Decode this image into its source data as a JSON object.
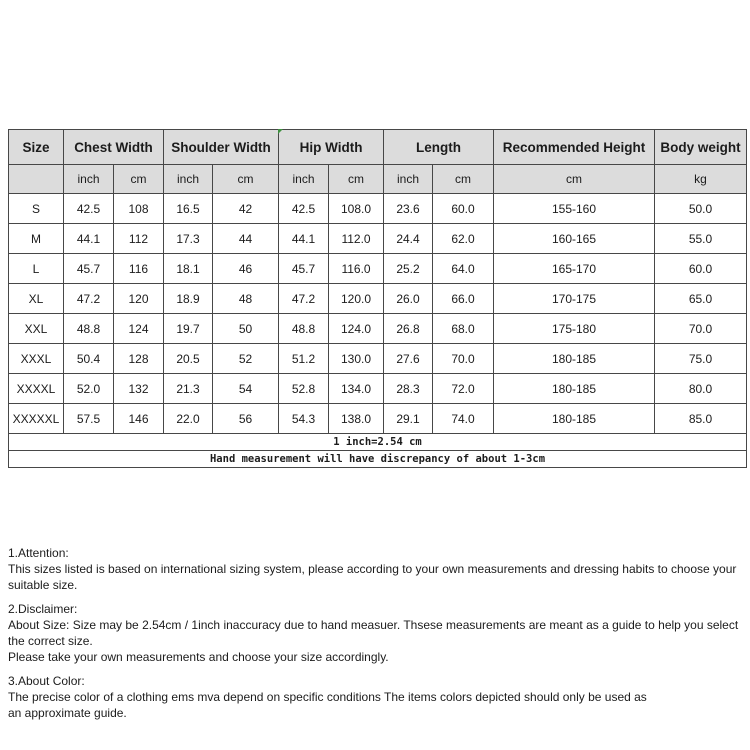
{
  "table": {
    "header": {
      "size_label": "Size",
      "groups": [
        {
          "label": "Chest Width"
        },
        {
          "label": "Shoulder Width"
        },
        {
          "label": "Hip Width"
        },
        {
          "label": "Length"
        },
        {
          "label": "Recommended Height"
        },
        {
          "label": "Body weight"
        }
      ],
      "units": [
        "",
        "inch",
        "cm",
        "inch",
        "cm",
        "inch",
        "cm",
        "inch",
        "cm",
        "cm",
        "kg"
      ]
    },
    "rows": [
      [
        "S",
        "42.5",
        "108",
        "16.5",
        "42",
        "42.5",
        "108.0",
        "23.6",
        "60.0",
        "155-160",
        "50.0"
      ],
      [
        "M",
        "44.1",
        "112",
        "17.3",
        "44",
        "44.1",
        "112.0",
        "24.4",
        "62.0",
        "160-165",
        "55.0"
      ],
      [
        "L",
        "45.7",
        "116",
        "18.1",
        "46",
        "45.7",
        "116.0",
        "25.2",
        "64.0",
        "165-170",
        "60.0"
      ],
      [
        "XL",
        "47.2",
        "120",
        "18.9",
        "48",
        "47.2",
        "120.0",
        "26.0",
        "66.0",
        "170-175",
        "65.0"
      ],
      [
        "XXL",
        "48.8",
        "124",
        "19.7",
        "50",
        "48.8",
        "124.0",
        "26.8",
        "68.0",
        "175-180",
        "70.0"
      ],
      [
        "XXXL",
        "50.4",
        "128",
        "20.5",
        "52",
        "51.2",
        "130.0",
        "27.6",
        "70.0",
        "180-185",
        "75.0"
      ],
      [
        "XXXXL",
        "52.0",
        "132",
        "21.3",
        "54",
        "52.8",
        "134.0",
        "28.3",
        "72.0",
        "180-185",
        "80.0"
      ],
      [
        "XXXXXL",
        "57.5",
        "146",
        "22.0",
        "56",
        "54.3",
        "138.0",
        "29.1",
        "74.0",
        "180-185",
        "85.0"
      ]
    ],
    "footnotes": [
      "1 inch=2.54 cm",
      "Hand measurement will have discrepancy of about 1-3cm"
    ]
  },
  "notes": [
    {
      "heading": "1.Attention:",
      "lines": [
        "This sizes listed is based on international sizing system, please according to your own measurements and dressing habits to choose your suitable size."
      ]
    },
    {
      "heading": "2.Disclaimer:",
      "lines": [
        "About Size: Size may be 2.54cm / 1inch inaccuracy due to hand measuer. Thsese measurements are meant as a guide to help you select the correct size.",
        "Please take your own measurements and choose your size accordingly."
      ]
    },
    {
      "heading": "3.About Color:",
      "lines": [
        "The precise color of a clothing ems mva depend on specific conditions The items colors depicted should only be used as",
        "an approximate guide."
      ]
    }
  ],
  "colors": {
    "header_bg": "#dcdcdc",
    "border": "#474747",
    "marker_green": "#3f9140"
  }
}
